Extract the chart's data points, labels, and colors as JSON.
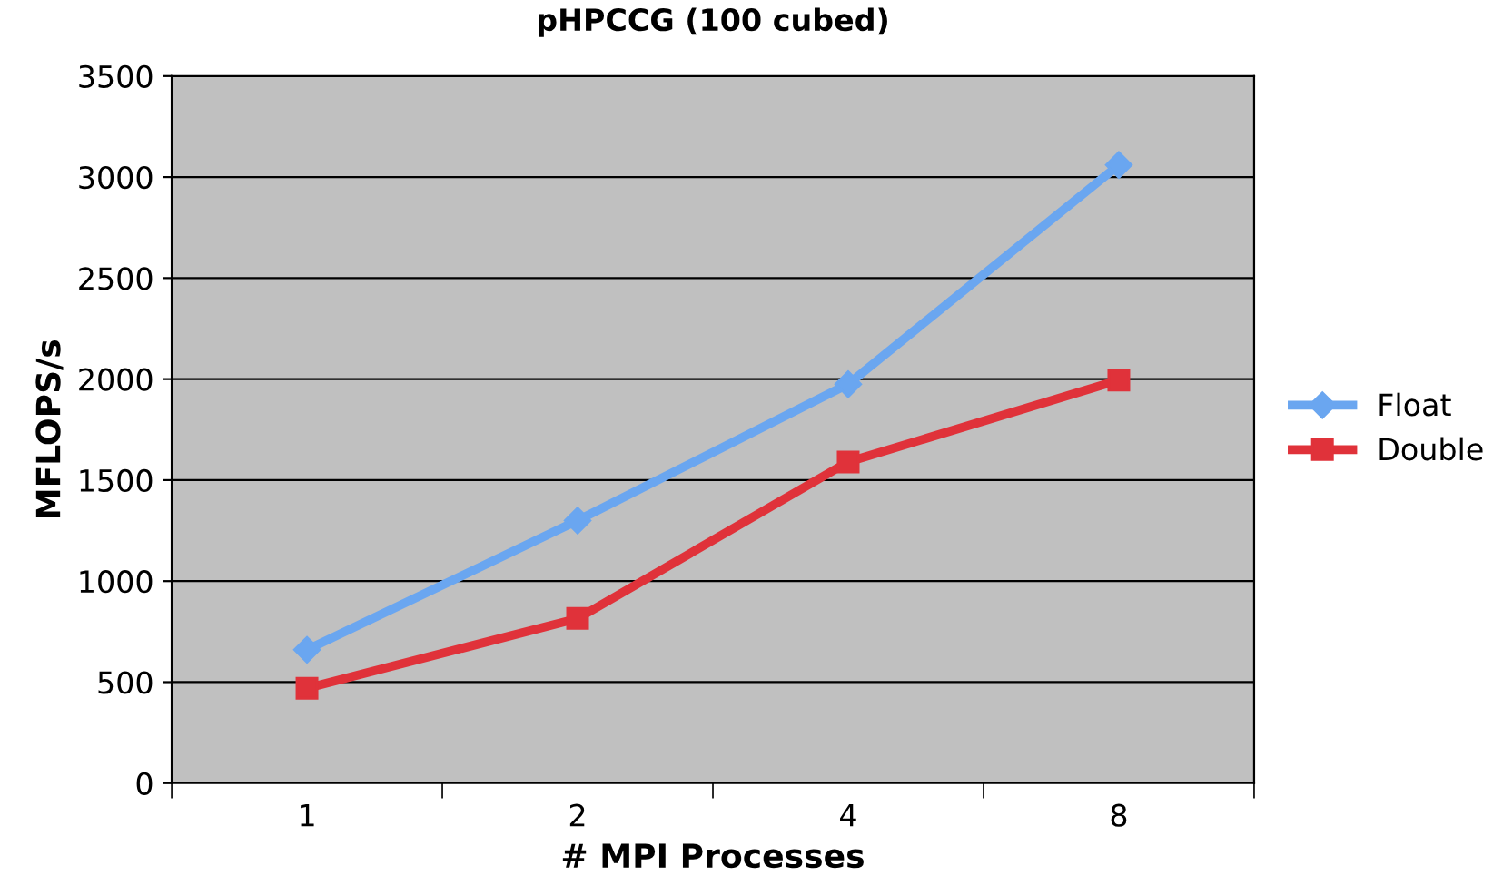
{
  "chart_data": {
    "type": "line",
    "title": "pHPCCG (100 cubed)",
    "xlabel": "# MPI Processes",
    "ylabel": "MFLOPS/s",
    "categories": [
      "1",
      "2",
      "4",
      "8"
    ],
    "series": [
      {
        "name": "Float",
        "color": "#6aa6f0",
        "marker": "diamond",
        "values": [
          660,
          1300,
          1975,
          3060
        ]
      },
      {
        "name": "Double",
        "color": "#e0323a",
        "marker": "square",
        "values": [
          470,
          815,
          1590,
          1995
        ]
      }
    ],
    "ylim": [
      0,
      3500
    ],
    "yticks": [
      0,
      500,
      1000,
      1500,
      2000,
      2500,
      3000,
      3500
    ],
    "grid": "y",
    "legend": "right",
    "line_style": "solid"
  }
}
